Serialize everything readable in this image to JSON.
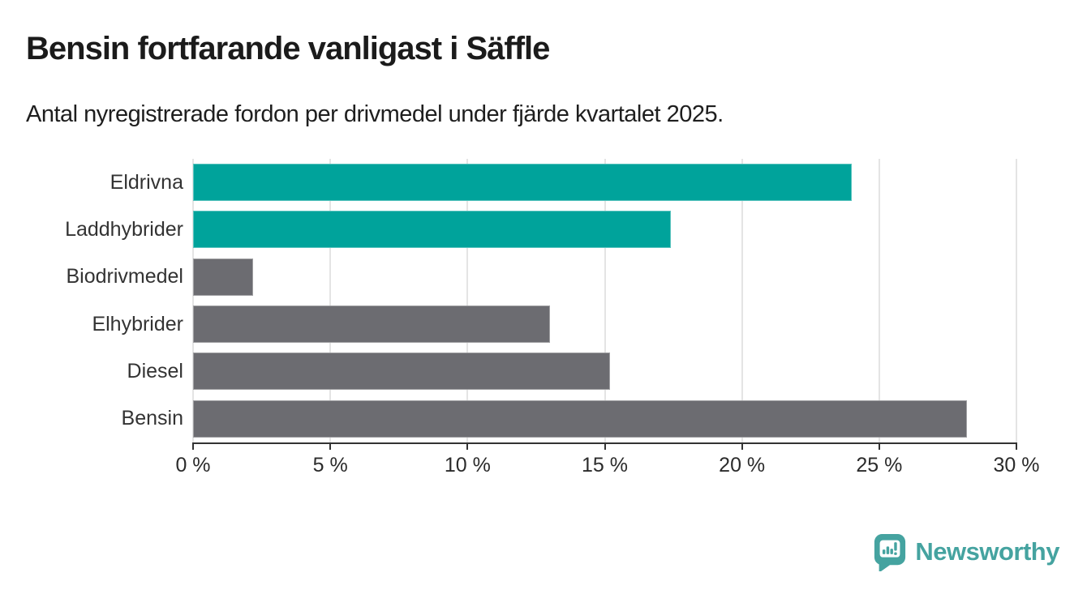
{
  "title": "Bensin fortfarande vanligast i Säffle",
  "subtitle": "Antal nyregistrerade fordon per drivmedel under fjärde kvartalet 2025.",
  "branding": {
    "logo_text": "Newsworthy",
    "logo_icon": "newsworthy-pin-bar-chart-icon",
    "logo_color": "#45a3a0"
  },
  "colors": {
    "highlight_bar": "#00a39b",
    "default_bar": "#6c6c71",
    "gridline": "#e4e4e4",
    "axis": "#333333",
    "title_text": "#1b1b1b",
    "label_text": "#333333"
  },
  "chart_data": {
    "type": "bar",
    "orientation": "horizontal",
    "title": "Bensin fortfarande vanligast i Säffle",
    "subtitle": "Antal nyregistrerade fordon per drivmedel under fjärde kvartalet 2025.",
    "categories": [
      "Eldrivna",
      "Laddhybrider",
      "Biodrivmedel",
      "Elhybrider",
      "Diesel",
      "Bensin"
    ],
    "values": [
      24.0,
      17.4,
      2.2,
      13.0,
      15.2,
      28.2
    ],
    "bar_colors": [
      "#00a39b",
      "#00a39b",
      "#6c6c71",
      "#6c6c71",
      "#6c6c71",
      "#6c6c71"
    ],
    "unit": "%",
    "xlabel": "",
    "ylabel": "",
    "xlim": [
      0,
      30
    ],
    "x_ticks": [
      0,
      5,
      10,
      15,
      20,
      25,
      30
    ],
    "x_tick_labels": [
      "0 %",
      "5 %",
      "10 %",
      "15 %",
      "20 %",
      "25 %",
      "30 %"
    ],
    "grid": true,
    "legend": false
  }
}
